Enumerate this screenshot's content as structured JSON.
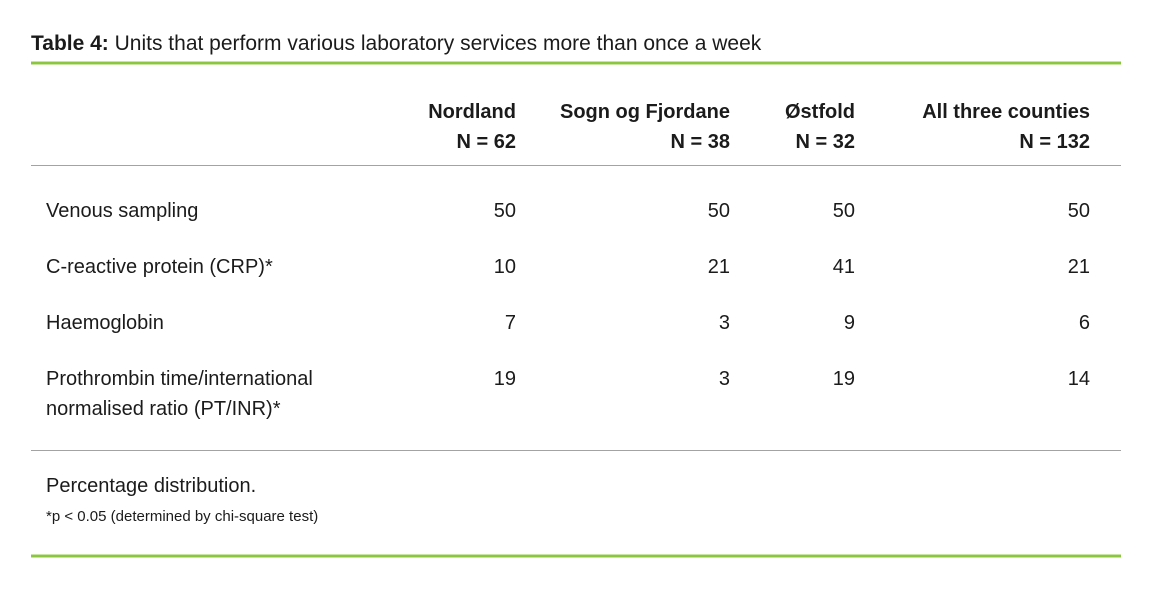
{
  "title": {
    "label": "Table 4:",
    "text": " Units that perform various laboratory services more than once a week"
  },
  "table": {
    "columns": [
      {
        "name": "Nordland",
        "n": "N = 62"
      },
      {
        "name": "Sogn og Fjordane",
        "n": "N = 38"
      },
      {
        "name": "Østfold",
        "n": "N = 32"
      },
      {
        "name": "All three counties",
        "n": "N = 132"
      }
    ],
    "rows": [
      {
        "label": "Venous sampling",
        "values": [
          "50",
          "50",
          "50",
          "50"
        ]
      },
      {
        "label": "C-reactive protein (CRP)*",
        "values": [
          "10",
          "21",
          "41",
          "21"
        ]
      },
      {
        "label": "Haemoglobin",
        "values": [
          "7",
          "3",
          "9",
          "6"
        ]
      },
      {
        "label": "Prothrombin time/international\nnormalised ratio (PT/INR)*",
        "values": [
          "19",
          "3",
          "19",
          "14"
        ]
      }
    ]
  },
  "footer": {
    "note": "Percentage distribution.",
    "footnote": "*p < 0.05 (determined by chi-square test)"
  },
  "colors": {
    "accent_green": "#8CC63F",
    "accent_green_halo": "#C9E5A4",
    "divider_gray": "#A3A3A3",
    "text": "#1B1B1B",
    "background": "#FFFFFF"
  }
}
